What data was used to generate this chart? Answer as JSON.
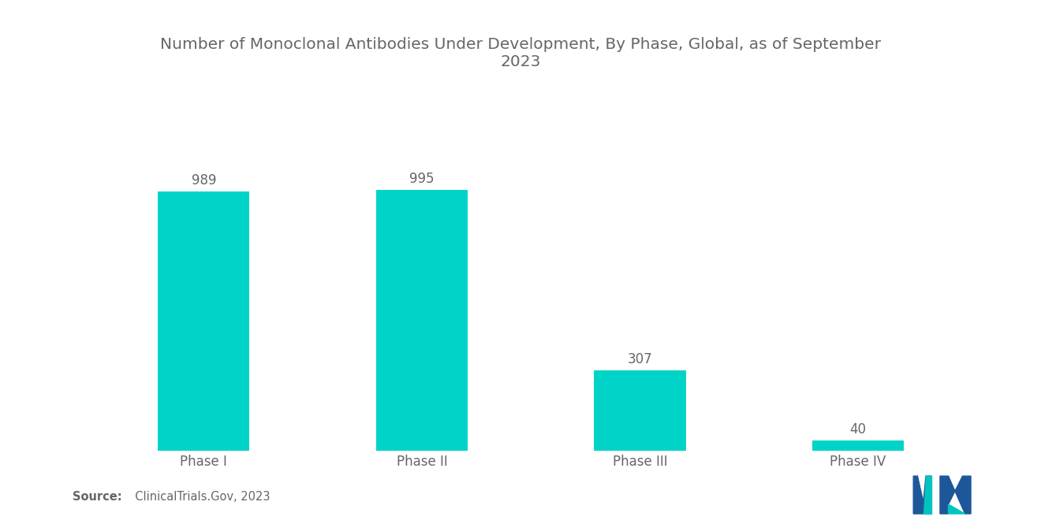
{
  "title": "Number of Monoclonal Antibodies Under Development, By Phase, Global, as of September\n2023",
  "categories": [
    "Phase I",
    "Phase II",
    "Phase III",
    "Phase IV"
  ],
  "values": [
    989,
    995,
    307,
    40
  ],
  "bar_color": "#00D4C8",
  "background_color": "#ffffff",
  "text_color": "#666666",
  "title_fontsize": 14.5,
  "label_fontsize": 12,
  "value_fontsize": 12,
  "source_bold": "Source:",
  "source_normal": "  ClinicalTrials.Gov, 2023",
  "ylim": [
    0,
    1200
  ]
}
